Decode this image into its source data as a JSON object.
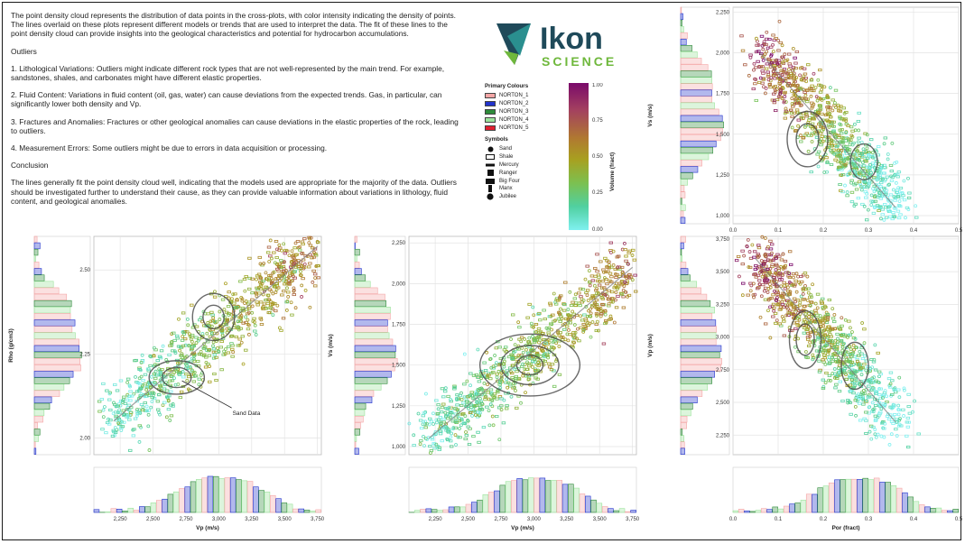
{
  "description": {
    "paragraphs": [
      "The point density cloud represents the distribution of data points in the cross-plots, with color intensity indicating the density of points. The lines overlaid on these plots represent different models or trends that are used to interpret the data. The fit of these lines to the point density cloud can provide insights into the geological characteristics and potential for hydrocarbon accumulations.",
      "Outliers",
      "1. Lithological Variations: Outliers might indicate different rock types that are not well-represented by the main trend. For example, sandstones, shales, and carbonates might have different elastic properties.",
      "2. Fluid Content: Variations in fluid content (oil, gas, water) can cause deviations from the expected trends. Gas, in particular, can significantly lower both density and Vp.",
      "3. Fractures and Anomalies: Fractures or other geological anomalies can cause deviations in the elastic properties of the rock, leading to outliers.",
      "4. Measurement Errors: Some outliers might be due to errors in data acquisition or processing.",
      "Conclusion",
      "The lines generally fit the point density cloud well, indicating that the models used are appropriate for the majority of the data. Outliers should be investigated further to understand their cause, as they can provide valuable information about variations in lithology, fluid content, and geological anomalies."
    ]
  },
  "logo": {
    "word1": "Ikon",
    "word2": "SCIENCE",
    "color_dark": "#1f4a5a",
    "color_green": "#6fb83c",
    "color_teal": "#2a8f8f"
  },
  "legend": {
    "primary_title": "Primary Colours",
    "primary": [
      {
        "label": "NORTON_1",
        "color": "#f4a6a6"
      },
      {
        "label": "NORTON_2",
        "color": "#2233cc"
      },
      {
        "label": "NORTON_3",
        "color": "#2e8b3a"
      },
      {
        "label": "NORTON_4",
        "color": "#9be39b"
      },
      {
        "label": "NORTON_5",
        "color": "#e02030"
      }
    ],
    "symbols_title": "Symbols",
    "symbols": [
      {
        "label": "Sand",
        "icon": "filled-circle"
      },
      {
        "label": "Shale",
        "icon": "hollow-rectangle"
      },
      {
        "label": "Mercury",
        "icon": "thin-bar"
      },
      {
        "label": "Ranger",
        "icon": "filled-square"
      },
      {
        "label": "Big Four",
        "icon": "wide-rectangle"
      },
      {
        "label": "Manx",
        "icon": "tall-rectangle"
      },
      {
        "label": "Jubilee",
        "icon": "filled-circle"
      }
    ]
  },
  "colorbar": {
    "label": "Volume (fract)",
    "ticks": [
      "1.00",
      "0.75",
      "0.50",
      "0.25",
      "0.00"
    ],
    "stops": [
      "#7a0a6a",
      "#a34060",
      "#b07a30",
      "#a8a020",
      "#7cc050",
      "#50d0a0",
      "#7ff0f0"
    ]
  },
  "chart_data": [
    {
      "id": "vs-vs-por",
      "type": "scatter",
      "title": "",
      "xlabel": "Por (fract)",
      "ylabel": "Vs (m/s)",
      "xlim": [
        0,
        0.5
      ],
      "ylim": [
        950,
        2280
      ],
      "xticks": [
        "0.0",
        "0.1",
        "0.2",
        "0.3",
        "0.4",
        "0.5"
      ],
      "yticks": [
        "1,000",
        "1,250",
        "1,500",
        "1,750",
        "2,000",
        "2,250"
      ],
      "trend": {
        "x0": 0.06,
        "y0": 2000,
        "x1": 0.36,
        "y1": 1050
      },
      "contours": [
        {
          "cx": 0.165,
          "cy": 1470,
          "rx": 0.025,
          "ry": 95
        },
        {
          "cx": 0.165,
          "cy": 1470,
          "rx": 0.045,
          "ry": 170
        },
        {
          "cx": 0.29,
          "cy": 1330,
          "rx": 0.03,
          "ry": 110
        }
      ]
    },
    {
      "id": "rho-vp",
      "type": "scatter",
      "xlabel": "Vp (m/s)",
      "ylabel": "Rho (g/cm3)",
      "xlim": [
        2050,
        3780
      ],
      "ylim": [
        1.95,
        2.6
      ],
      "xticks": [
        "2,250",
        "2,500",
        "2,750",
        "3,000",
        "3,250",
        "3,500",
        "3,750"
      ],
      "yticks": [
        "2.00",
        "2.25",
        "2.50"
      ],
      "trend": {
        "x0": 2200,
        "y0": 2.05,
        "x1": 3750,
        "y1": 2.57
      },
      "contours": [
        {
          "cx": 2960,
          "cy": 2.36,
          "rx": 80,
          "ry": 0.035
        },
        {
          "cx": 2960,
          "cy": 2.36,
          "rx": 160,
          "ry": 0.07
        },
        {
          "cx": 2680,
          "cy": 2.18,
          "rx": 110,
          "ry": 0.03
        },
        {
          "cx": 2680,
          "cy": 2.18,
          "rx": 210,
          "ry": 0.05
        }
      ],
      "annotation": "Sand Data"
    },
    {
      "id": "vs-vp",
      "type": "scatter",
      "xlabel": "Vp (m/s)",
      "ylabel": "Vs (m/s)",
      "xlim": [
        2050,
        3780
      ],
      "ylim": [
        950,
        2290
      ],
      "xticks": [
        "2,250",
        "2,500",
        "2,750",
        "3,000",
        "3,250",
        "3,500",
        "3,750"
      ],
      "yticks": [
        "1,000",
        "1,250",
        "1,500",
        "1,750",
        "2,000",
        "2,250"
      ],
      "trend": {
        "x0": 2200,
        "y0": 1050,
        "x1": 3750,
        "y1": 2100
      },
      "contours": [
        {
          "cx": 2970,
          "cy": 1500,
          "rx": 100,
          "ry": 60
        },
        {
          "cx": 2970,
          "cy": 1500,
          "rx": 220,
          "ry": 120
        },
        {
          "cx": 2970,
          "cy": 1500,
          "rx": 380,
          "ry": 190
        }
      ]
    },
    {
      "id": "vp-por",
      "type": "scatter",
      "xlabel": "Por (fract)",
      "ylabel": "Vp (m/s)",
      "xlim": [
        0,
        0.5
      ],
      "ylim": [
        2100,
        3770
      ],
      "xticks": [
        "0.0",
        "0.1",
        "0.2",
        "0.3",
        "0.4",
        "0.5"
      ],
      "yticks": [
        "2,250",
        "2,500",
        "2,750",
        "3,000",
        "3,250",
        "3,500",
        "3,750"
      ],
      "trend": {
        "x0": 0.05,
        "y0": 3600,
        "x1": 0.36,
        "y1": 2350
      },
      "contours": [
        {
          "cx": 0.16,
          "cy": 2980,
          "rx": 0.02,
          "ry": 120
        },
        {
          "cx": 0.16,
          "cy": 2980,
          "rx": 0.035,
          "ry": 220
        },
        {
          "cx": 0.27,
          "cy": 2780,
          "rx": 0.03,
          "ry": 180
        }
      ]
    }
  ],
  "axis_labels": {
    "vs_por_y": "Vs (m/s)",
    "rho_vp_y": "Rho (g/cm3)",
    "vs_vp_y": "Vs (m/s)",
    "vp_por_y": "Vp (m/s)",
    "vp_x1": "Vp (m/s)",
    "vp_x2": "Vp (m/s)",
    "por_x": "Por (fract)"
  }
}
